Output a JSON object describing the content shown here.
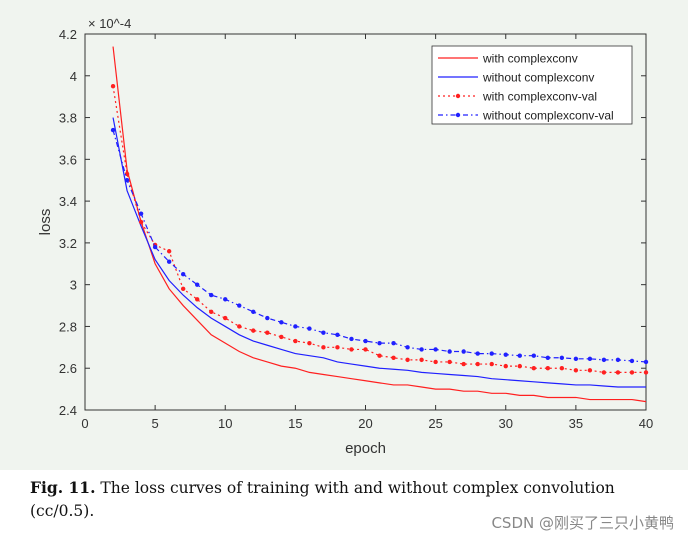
{
  "chart_data": {
    "type": "line",
    "title": "",
    "xlabel": "epoch",
    "ylabel": "loss",
    "y_exponent_label": "× 10^-4",
    "xlim": [
      0,
      40
    ],
    "ylim": [
      2.4,
      4.2
    ],
    "xticks": [
      0,
      5,
      10,
      15,
      20,
      25,
      30,
      35,
      40
    ],
    "yticks": [
      2.4,
      2.6,
      2.8,
      3,
      3.2,
      3.4,
      3.6,
      3.8,
      4,
      4.2
    ],
    "grid": false,
    "legend_placement": "top-right",
    "x": [
      2,
      3,
      4,
      5,
      6,
      7,
      8,
      9,
      10,
      11,
      12,
      13,
      14,
      15,
      16,
      17,
      18,
      19,
      20,
      21,
      22,
      23,
      24,
      25,
      26,
      27,
      28,
      29,
      30,
      31,
      32,
      33,
      34,
      35,
      36,
      37,
      38,
      39,
      40
    ],
    "series": [
      {
        "name": "with complexconv",
        "color": "#ff2020",
        "style": "solid",
        "values": [
          4.14,
          3.55,
          3.3,
          3.1,
          2.98,
          2.9,
          2.83,
          2.76,
          2.72,
          2.68,
          2.65,
          2.63,
          2.61,
          2.6,
          2.58,
          2.57,
          2.56,
          2.55,
          2.54,
          2.53,
          2.52,
          2.52,
          2.51,
          2.5,
          2.5,
          2.49,
          2.49,
          2.48,
          2.48,
          2.47,
          2.47,
          2.46,
          2.46,
          2.46,
          2.45,
          2.45,
          2.45,
          2.45,
          2.44
        ]
      },
      {
        "name": "without complexconv",
        "color": "#2020ff",
        "style": "solid",
        "values": [
          3.8,
          3.45,
          3.28,
          3.12,
          3.02,
          2.95,
          2.89,
          2.84,
          2.8,
          2.76,
          2.73,
          2.71,
          2.69,
          2.67,
          2.66,
          2.65,
          2.63,
          2.62,
          2.61,
          2.6,
          2.595,
          2.59,
          2.58,
          2.575,
          2.57,
          2.565,
          2.56,
          2.55,
          2.545,
          2.54,
          2.535,
          2.53,
          2.525,
          2.52,
          2.52,
          2.515,
          2.51,
          2.51,
          2.51
        ]
      },
      {
        "name": "with complexconv-val",
        "color": "#ff2020",
        "style": "dotted-marker",
        "values": [
          3.95,
          3.53,
          3.3,
          3.19,
          3.16,
          2.98,
          2.93,
          2.87,
          2.84,
          2.8,
          2.78,
          2.77,
          2.75,
          2.73,
          2.72,
          2.7,
          2.7,
          2.69,
          2.69,
          2.66,
          2.65,
          2.64,
          2.64,
          2.63,
          2.63,
          2.62,
          2.62,
          2.62,
          2.61,
          2.61,
          2.6,
          2.6,
          2.6,
          2.59,
          2.59,
          2.58,
          2.58,
          2.58,
          2.58
        ]
      },
      {
        "name": "without complexconv-val",
        "color": "#2020ff",
        "style": "dashdot-marker",
        "values": [
          3.74,
          3.5,
          3.34,
          3.18,
          3.11,
          3.05,
          3.0,
          2.95,
          2.93,
          2.9,
          2.87,
          2.84,
          2.82,
          2.8,
          2.79,
          2.77,
          2.76,
          2.74,
          2.73,
          2.72,
          2.72,
          2.7,
          2.69,
          2.69,
          2.68,
          2.68,
          2.67,
          2.67,
          2.665,
          2.66,
          2.66,
          2.65,
          2.65,
          2.645,
          2.645,
          2.64,
          2.64,
          2.635,
          2.63
        ]
      }
    ]
  },
  "caption": {
    "label": "Fig. 11.",
    "text": " The loss curves of training with and without complex convolution (cc/0.5)."
  },
  "watermark": "CSDN @刚买了三只小黄鸭"
}
